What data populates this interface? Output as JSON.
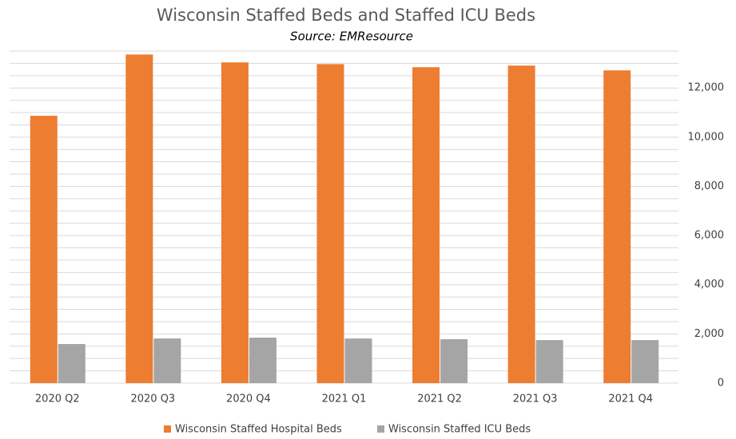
{
  "chart_data": {
    "type": "bar",
    "title": "Wisconsin Staffed Beds and Staffed ICU Beds",
    "subtitle": "Source: EMResource",
    "categories": [
      "2020 Q2",
      "2020 Q3",
      "2020 Q4",
      "2021 Q1",
      "2021 Q2",
      "2021 Q3",
      "2021 Q4"
    ],
    "series": [
      {
        "name": "Wisconsin Staffed Hospital Beds",
        "color": "#ed7d31",
        "values": [
          10870,
          13360,
          13040,
          12970,
          12845,
          12910,
          12715
        ]
      },
      {
        "name": "Wisconsin Staffed ICU Beds",
        "color": "#a5a5a5",
        "values": [
          1590,
          1815,
          1850,
          1815,
          1785,
          1750,
          1750
        ]
      }
    ],
    "ylim": [
      0,
      13500
    ],
    "yticks": [
      0,
      {
        "value": 2000,
        "label": "2,000"
      },
      {
        "value": 4000,
        "label": "4,000"
      },
      {
        "value": 6000,
        "label": "6,000"
      },
      {
        "value": 8000,
        "label": "8,000"
      },
      {
        "value": 10000,
        "label": "10,000"
      },
      {
        "value": 12000,
        "label": "12,000"
      }
    ],
    "gridlines": [
      0,
      500,
      1000,
      1500,
      2000,
      2500,
      3000,
      3500,
      4000,
      4500,
      5000,
      5500,
      6000,
      6500,
      7000,
      7500,
      8000,
      8500,
      9000,
      9500,
      10000,
      10500,
      11000,
      11500,
      12000,
      12500,
      13000,
      13500
    ],
    "grid": true,
    "y_axis_side": "right",
    "legend": "bottom"
  }
}
